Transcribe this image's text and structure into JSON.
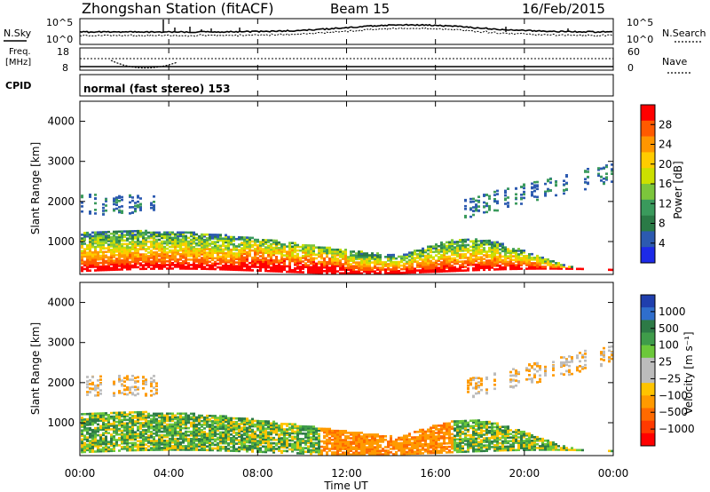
{
  "header": {
    "station": "Zhongshan Station (fitACF)",
    "beam": "Beam 15",
    "date": "16/Feb/2015"
  },
  "strip1": {
    "left_label": "N.Sky",
    "left_ticks": [
      "10^5",
      "10^0"
    ],
    "right_label": "N.Search",
    "right_ticks": [
      "10^5",
      "10^0"
    ]
  },
  "strip2": {
    "left_label_1": "Freq.",
    "left_label_2": "[MHz]",
    "left_ticks": [
      "18",
      "8"
    ],
    "right_label": "Nave",
    "right_ticks": [
      "60",
      "0"
    ]
  },
  "strip3": {
    "left_label": "CPID",
    "cpid_text": "normal (fast stereo) 153"
  },
  "chart_data": [
    {
      "type": "heatmap",
      "ylabel": "Slant Range [km]",
      "y_ticks": [
        "4000",
        "3000",
        "2000",
        "1000"
      ],
      "ylim": [
        180,
        4500
      ],
      "colorbar_label": "Power [dB]",
      "colorbar_ticks": [
        "28",
        "24",
        "20",
        "16",
        "12",
        "8",
        "4"
      ],
      "colorbar_colors": [
        "#ff0000",
        "#ff5a00",
        "#ff9600",
        "#ffcc00",
        "#cce000",
        "#7cc63c",
        "#3a9a5c",
        "#2a7a46",
        "#2c5ab0",
        "#1d2ae8"
      ]
    },
    {
      "type": "heatmap",
      "ylabel": "Slant Range [km]",
      "y_ticks": [
        "4000",
        "3000",
        "2000",
        "1000"
      ],
      "ylim": [
        180,
        4500
      ],
      "colorbar_label": "Velocity [m s⁻¹]",
      "colorbar_ticks": [
        "1000",
        "500",
        "100",
        "25",
        "−25",
        "−100",
        "−500",
        "−1000"
      ],
      "colorbar_colors": [
        "#1f3fae",
        "#2f6ecc",
        "#2d7a46",
        "#3f9c4a",
        "#6cc83a",
        "#bcbcbc",
        "#bcbcbc",
        "#ffc400",
        "#ff9a00",
        "#ff6a00",
        "#ff3a00",
        "#ff0000"
      ]
    }
  ],
  "x_axis": {
    "ticks": [
      "00:00",
      "04:00",
      "08:00",
      "12:00",
      "16:00",
      "20:00",
      "00:00"
    ],
    "label": "Time UT"
  }
}
